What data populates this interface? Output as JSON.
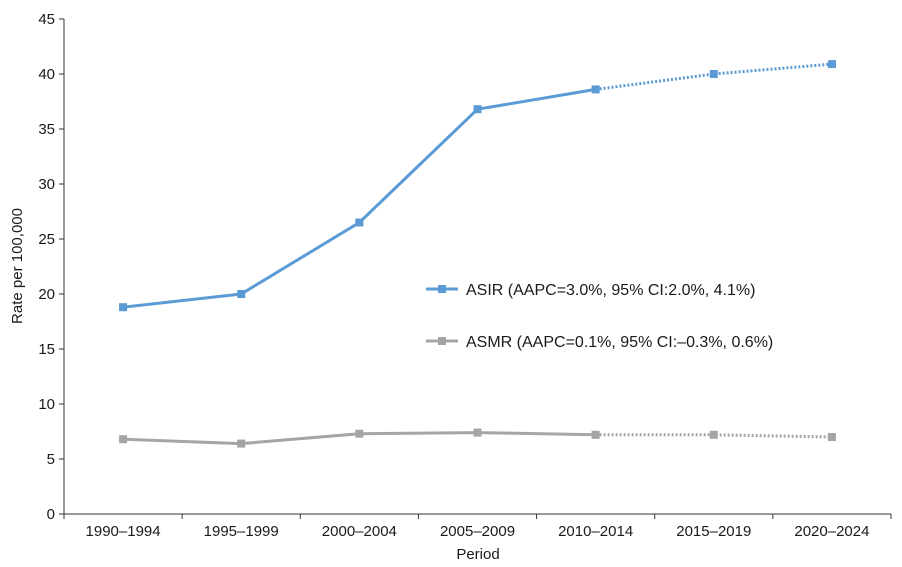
{
  "chart_data": {
    "type": "line",
    "title": "",
    "xlabel": "Period",
    "ylabel": "Rate per 100,000",
    "ylim": [
      0,
      45
    ],
    "yticks": [
      0,
      5,
      10,
      15,
      20,
      25,
      30,
      35,
      40,
      45
    ],
    "categories": [
      "1990–1994",
      "1995–1999",
      "2000–2004",
      "2005–2009",
      "2010–2014",
      "2015–2019",
      "2020–2024"
    ],
    "series": [
      {
        "name": "ASIR (AAPC=3.0%, 95% CI:2.0%, 4.1%)",
        "values": [
          18.8,
          20.0,
          26.5,
          36.8,
          38.6,
          40.0,
          40.9
        ],
        "color": "#5b9bd5",
        "observed_through_index": 4,
        "projected_style": "dotted"
      },
      {
        "name": "ASMR (AAPC=0.1%, 95% CI:–0.3%, 0.6%)",
        "values": [
          6.8,
          6.4,
          7.3,
          7.4,
          7.2,
          7.2,
          7.0
        ],
        "color": "#a5a5a5",
        "observed_through_index": 4,
        "projected_style": "dotted"
      }
    ],
    "grid": false,
    "legend_position": "center-right"
  }
}
